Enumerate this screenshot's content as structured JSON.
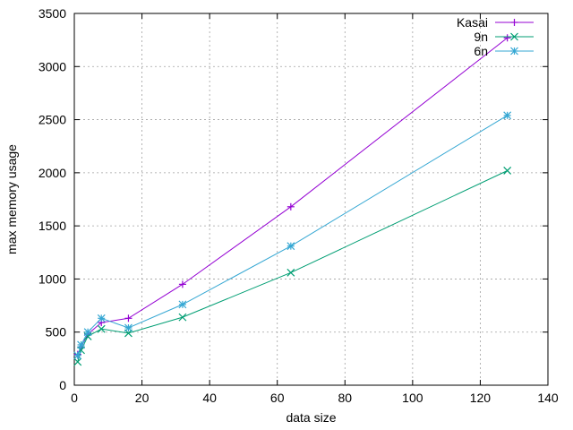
{
  "chart_data": {
    "type": "line",
    "xlabel": "data size",
    "ylabel": "max memory usage",
    "xlim": [
      0,
      140
    ],
    "ylim": [
      0,
      3500
    ],
    "xticks": [
      0,
      20,
      40,
      60,
      80,
      100,
      120,
      140
    ],
    "yticks": [
      0,
      500,
      1000,
      1500,
      2000,
      2500,
      3000,
      3500
    ],
    "grid": true,
    "legend_position": "top-right",
    "x": [
      1,
      2,
      4,
      8,
      16,
      32,
      64,
      128
    ],
    "series": [
      {
        "name": "Kasai",
        "marker": "plus",
        "color": "#9400d3",
        "values": [
          290,
          360,
          480,
          590,
          630,
          950,
          1680,
          3270
        ]
      },
      {
        "name": "9n",
        "marker": "x",
        "color": "#009e73",
        "values": [
          220,
          330,
          460,
          530,
          490,
          640,
          1060,
          2020
        ]
      },
      {
        "name": "6n",
        "marker": "star",
        "color": "#35a7d3",
        "values": [
          280,
          380,
          500,
          630,
          540,
          760,
          1310,
          2540
        ]
      }
    ]
  }
}
